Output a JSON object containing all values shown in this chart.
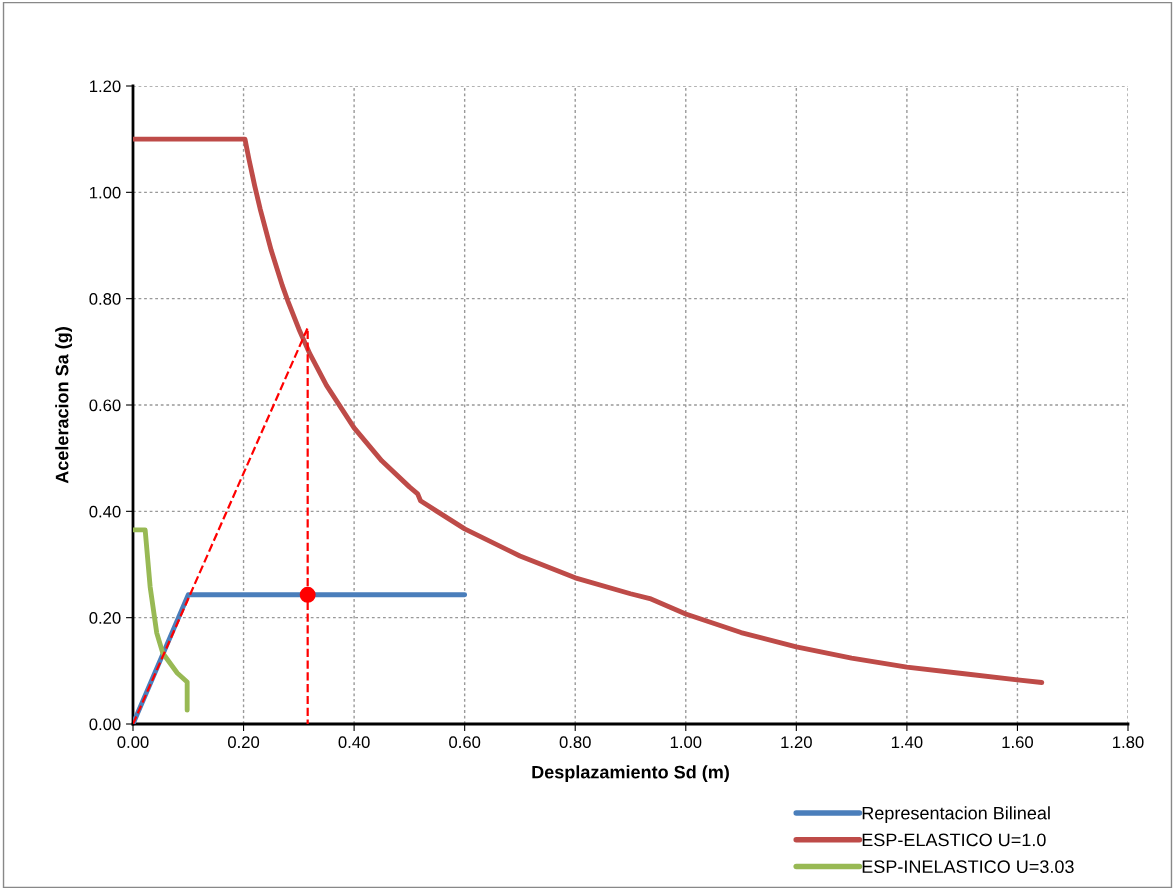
{
  "chart_data": {
    "type": "line",
    "xlabel": "Desplazamiento Sd (m)",
    "ylabel": "Aceleracion Sa (g)",
    "xlim": [
      0,
      1.8
    ],
    "xticks": [
      {
        "value": 0,
        "label": "0.00"
      },
      {
        "value": 0.2,
        "label": "0.20"
      },
      {
        "value": 0.4,
        "label": "0.40"
      },
      {
        "value": 0.6,
        "label": "0.60"
      },
      {
        "value": 0.8,
        "label": "0.80"
      },
      {
        "value": 1.0,
        "label": "1.00"
      },
      {
        "value": 1.2,
        "label": "1.20"
      },
      {
        "value": 1.4,
        "label": "1.40"
      },
      {
        "value": 1.6,
        "label": "1.60"
      },
      {
        "value": 1.8,
        "label": "1.80"
      }
    ],
    "ylim": [
      0,
      1.2
    ],
    "yticks": [
      {
        "value": 0,
        "label": "0.00"
      },
      {
        "value": 0.2,
        "label": "0.20"
      },
      {
        "value": 0.4,
        "label": "0.40"
      },
      {
        "value": 0.6,
        "label": "0.60"
      },
      {
        "value": 0.8,
        "label": "0.80"
      },
      {
        "value": 1.0,
        "label": "1.00"
      },
      {
        "value": 1.2,
        "label": "1.20"
      }
    ],
    "grid": true,
    "legend": "bottom right",
    "marker": "none",
    "line_style": "solid",
    "series": [
      {
        "name": "Representacion Bilineal",
        "color": "#4a7ebb",
        "x": [
          0,
          0.1,
          0.6
        ],
        "values": [
          0,
          0.243,
          0.243
        ]
      },
      {
        "name": "ESP-ELASTICO U=1.0",
        "color": "#be4b48",
        "x": [
          0,
          0.2026,
          0.21,
          0.22,
          0.23,
          0.25,
          0.27,
          0.28,
          0.3,
          0.32,
          0.35,
          0.4,
          0.45,
          0.5,
          0.515,
          0.52,
          0.55,
          0.6,
          0.7,
          0.8,
          0.9,
          0.935,
          1.0,
          1.1,
          1.2,
          1.3,
          1.4,
          1.5,
          1.6,
          1.644
        ],
        "values": [
          1.1,
          1.1,
          1.061,
          1.013,
          0.969,
          0.891,
          0.825,
          0.796,
          0.743,
          0.696,
          0.637,
          0.557,
          0.495,
          0.446,
          0.433,
          0.42,
          0.4,
          0.367,
          0.316,
          0.275,
          0.245,
          0.236,
          0.207,
          0.172,
          0.145,
          0.124,
          0.107,
          0.095,
          0.083,
          0.078
        ]
      },
      {
        "name": "ESP-INELASTICO U=3.03",
        "color": "#98b954",
        "x": [
          0,
          0.022,
          0.031,
          0.043,
          0.054,
          0.08,
          0.098,
          0.098
        ],
        "values": [
          0.365,
          0.365,
          0.258,
          0.171,
          0.133,
          0.096,
          0.079,
          0.026
        ]
      },
      {
        "color": "#ff0000",
        "line_style": "dashed",
        "x": [
          0,
          0.316,
          0.316
        ],
        "values": [
          0,
          0.745,
          0
        ]
      },
      {
        "type": "scatter",
        "marker": "circle",
        "color": "#ff0000",
        "x": [
          0.316
        ],
        "values": [
          0.243
        ]
      }
    ]
  }
}
